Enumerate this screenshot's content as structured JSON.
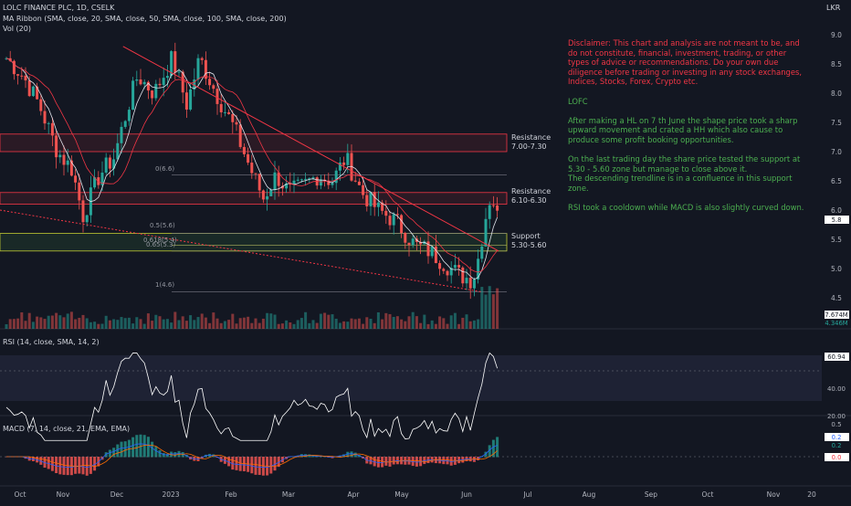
{
  "header": {
    "title": "LOLC FINANCE PLC, 1D, CSELK",
    "ma_ribbon": "MA Ribbon (SMA, close, 20, SMA, close, 50, SMA, close, 100, SMA, close, 200)",
    "vol": "Vol (20)",
    "currency": "LKR"
  },
  "rsi_label": "RSI (14, close, SMA, 14, 2)",
  "macd_label": "MACD (7, 14, close, 21, EMA, EMA)",
  "colors": {
    "bg": "#131722",
    "up": "#26a69a",
    "down": "#ef5350",
    "red_text": "#f23645",
    "green_text": "#4caf50",
    "rsi_line": "#ffffff",
    "macd_line": "#2962ff",
    "signal_line": "#ff6d00"
  },
  "annotations": {
    "disclaimer": "Disclaimer: This chart and analysis are not meant to be, and do not constitute, financial, investment, trading, or other types of advice or recommendations. Do your own due diligence before trading or investing in any stock exchanges, Indices, Stocks, Forex, Crypto etc.",
    "ticker": "LOFC",
    "para1": "After making a HL on 7 th June the shape price took a sharp upward movement and crated a HH which also cause to produce some profit booking opportunities.",
    "para2_line1": "On the last trading day the share price tested the support at 5.30 - 5.60 zone but manage to close above it.",
    "para2_line2": "The descending trendline is in a confluence in this support zone.",
    "para3": "RSI took a cooldown while MACD is also slightly curved down.",
    "resistance1": "Resistance",
    "resistance1_range": "7.00-7.30",
    "resistance2": "Resistance",
    "resistance2_range": "6.10-6.30",
    "support": "Support",
    "support_range": "5.30-5.60",
    "fib_0": "0(6.6)",
    "fib_05": "0.5(5.6)",
    "fib_0618": "0.618(5.4)",
    "fib_065": "0.65(5.3)",
    "fib_1": "1(4.6)"
  },
  "price_badges": {
    "last": "5.8",
    "vol1": "7.674M",
    "vol2": "4.346M",
    "rsi": "60.94",
    "macd1": "0.2",
    "macd2": "0.2",
    "macd3": "0.0"
  },
  "chart_data": {
    "type": "candlestick",
    "x_labels": [
      "Oct",
      "Nov",
      "Dec",
      "2023",
      "Feb",
      "Mar",
      "Apr",
      "May",
      "Jun",
      "Jul",
      "Aug",
      "Sep",
      "Oct",
      "Nov",
      "20"
    ],
    "price_axis_ticks": [
      "9.0",
      "8.5",
      "8.0",
      "7.5",
      "7.0",
      "6.5",
      "6.0",
      "5.5",
      "5.0",
      "4.5"
    ],
    "rsi_axis_ticks": [
      "40.00",
      "20.00"
    ],
    "macd_axis_ticks": [
      "0.5"
    ],
    "y_range": [
      4.2,
      9.2
    ],
    "zones": [
      {
        "name": "Resistance 7.00-7.30",
        "low": 7.0,
        "high": 7.3
      },
      {
        "name": "Resistance 6.10-6.30",
        "low": 6.1,
        "high": 6.3
      },
      {
        "name": "Support 5.30-5.60",
        "low": 5.3,
        "high": 5.6
      }
    ],
    "fib_levels": [
      {
        "ratio": "0",
        "price": 6.6
      },
      {
        "ratio": "0.5",
        "price": 5.6
      },
      {
        "ratio": "0.618",
        "price": 5.4
      },
      {
        "ratio": "0.65",
        "price": 5.3
      },
      {
        "ratio": "1",
        "price": 4.6
      }
    ],
    "trendlines": [
      {
        "from": [
          "Nov 25 2022",
          8.8
        ],
        "to": [
          "Jun 16 2023",
          5.35
        ]
      },
      {
        "from": [
          "Sep 20 2022",
          6.0
        ],
        "to": [
          "Jun 8 2023",
          4.6
        ]
      }
    ],
    "close_path": [
      [
        "2022-09-22",
        8.6
      ],
      [
        "2022-10-01",
        8.3
      ],
      [
        "2022-10-10",
        7.8
      ],
      [
        "2022-10-20",
        7.0
      ],
      [
        "2022-10-28",
        6.7
      ],
      [
        "2022-11-03",
        5.9
      ],
      [
        "2022-11-12",
        6.6
      ],
      [
        "2022-11-20",
        6.9
      ],
      [
        "2022-11-28",
        7.8
      ],
      [
        "2022-12-03",
        8.3
      ],
      [
        "2022-12-12",
        8.0
      ],
      [
        "2022-12-22",
        8.6
      ],
      [
        "2022-12-30",
        7.8
      ],
      [
        "2023-01-06",
        8.6
      ],
      [
        "2023-01-15",
        8.0
      ],
      [
        "2023-01-25",
        7.4
      ],
      [
        "2023-02-03",
        6.7
      ],
      [
        "2023-02-10",
        6.2
      ],
      [
        "2023-02-17",
        6.6
      ],
      [
        "2023-02-24",
        6.3
      ],
      [
        "2023-03-03",
        6.4
      ],
      [
        "2023-03-12",
        6.6
      ],
      [
        "2023-03-20",
        6.5
      ],
      [
        "2023-03-27",
        6.9
      ],
      [
        "2023-04-05",
        6.3
      ],
      [
        "2023-04-14",
        6.0
      ],
      [
        "2023-04-24",
        5.8
      ],
      [
        "2023-05-04",
        5.4
      ],
      [
        "2023-05-12",
        5.3
      ],
      [
        "2023-05-20",
        5.1
      ],
      [
        "2023-05-28",
        4.9
      ],
      [
        "2023-06-05",
        4.8
      ],
      [
        "2023-06-08",
        5.2
      ],
      [
        "2023-06-12",
        5.9
      ],
      [
        "2023-06-15",
        6.3
      ],
      [
        "2023-06-19",
        5.8
      ]
    ]
  }
}
